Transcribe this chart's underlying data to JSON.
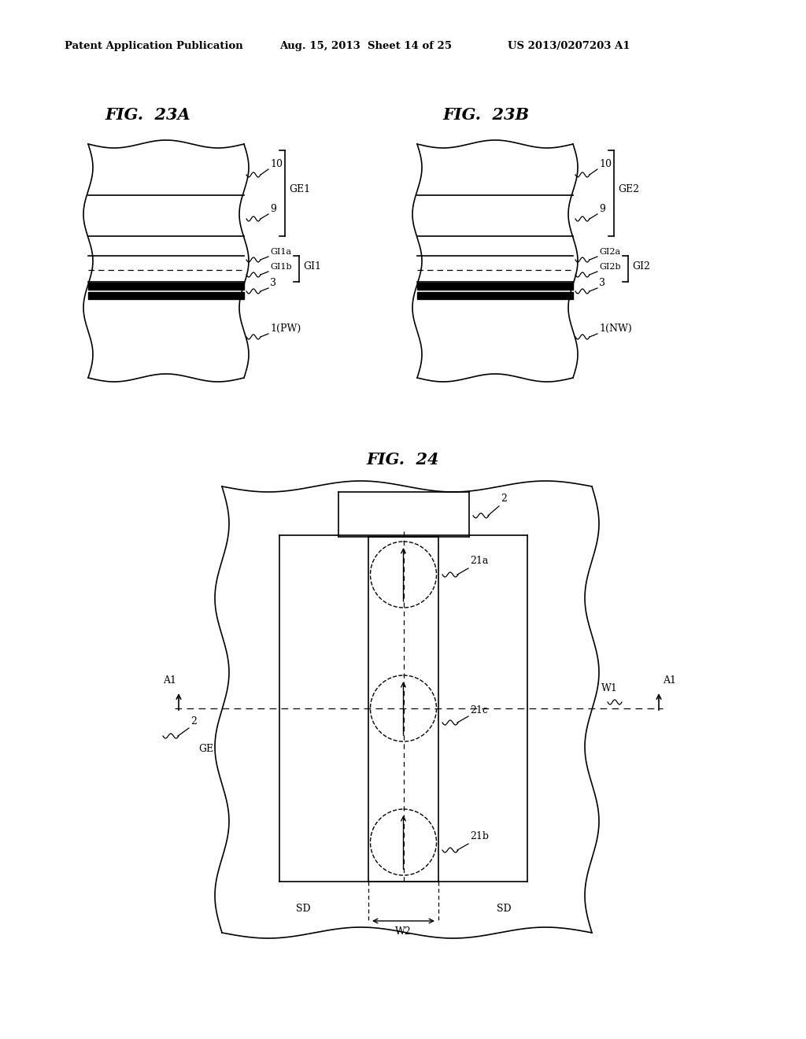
{
  "bg_color": "#ffffff",
  "header_left": "Patent Application Publication",
  "header_mid": "Aug. 15, 2013  Sheet 14 of 25",
  "header_right": "US 2013/0207203 A1",
  "fig23a_title": "FIG.  23A",
  "fig23b_title": "FIG.  23B",
  "fig24_title": "FIG.  24",
  "line_color": "#000000",
  "lw": 1.2
}
